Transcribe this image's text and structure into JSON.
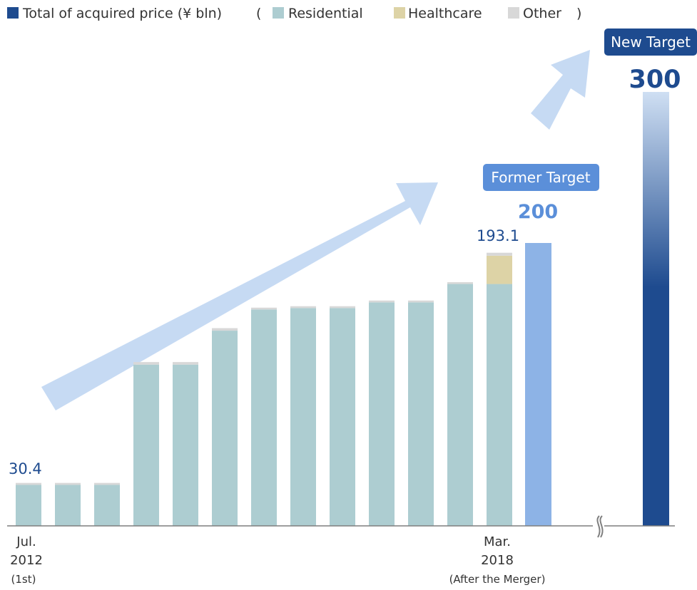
{
  "legend": {
    "total_label": "Total of acquired price (¥ bln)",
    "open_paren": "(",
    "close_paren": ")",
    "items": [
      {
        "label": "Residential",
        "color": "#adcdd1"
      },
      {
        "label": "Healthcare",
        "color": "#ddd3a6"
      },
      {
        "label": "Other",
        "color": "#d8d8d8"
      }
    ],
    "total_color": "#1e4b8f"
  },
  "colors": {
    "residential": "#adcdd1",
    "healthcare": "#ddd3a6",
    "other": "#d8d8d8",
    "former_target_bar": "#8db3e6",
    "new_target_bar": "#1e4b8f",
    "arrow": "#c6daf3",
    "value_label": "#1e4b8f",
    "former_target_badge": "#5b8fd9",
    "new_target_badge": "#1e4b8f"
  },
  "chart_data": {
    "type": "bar",
    "stacked": true,
    "categories": [
      "Jul. 2012 (1st)",
      "",
      "",
      "",
      "",
      "",
      "",
      "",
      "",
      "",
      "",
      "",
      "Mar. 2018 (After the Merger)"
    ],
    "series": [
      {
        "name": "Residential",
        "values": [
          29.0,
          29.0,
          29.0,
          114.0,
          114.0,
          138.0,
          153.0,
          154.0,
          154.0,
          158.0,
          158.0,
          171.0,
          171.0
        ]
      },
      {
        "name": "Healthcare",
        "values": [
          0,
          0,
          0,
          0,
          0,
          0,
          0,
          0,
          0,
          0,
          0,
          0,
          20.0
        ]
      },
      {
        "name": "Other",
        "values": [
          1.4,
          1.4,
          1.4,
          1.8,
          1.8,
          1.8,
          1.3,
          1.3,
          1.3,
          1.3,
          1.3,
          1.3,
          2.1
        ]
      }
    ],
    "targets": [
      {
        "label": "Former Target",
        "value": 200,
        "value_label": "200"
      },
      {
        "label": "New Target",
        "value": 300,
        "value_label": "300"
      }
    ],
    "data_labels": {
      "first": "30.4",
      "last": "193.1"
    },
    "x_labels": [
      {
        "lines": [
          "Jul.",
          "2012",
          "(1st)"
        ]
      },
      {
        "lines": [
          "Mar.",
          "2018",
          "(After the Merger)"
        ]
      }
    ],
    "ylim": [
      0,
      300
    ],
    "axis_break": true,
    "grid": false,
    "legend_position": "top-left"
  }
}
